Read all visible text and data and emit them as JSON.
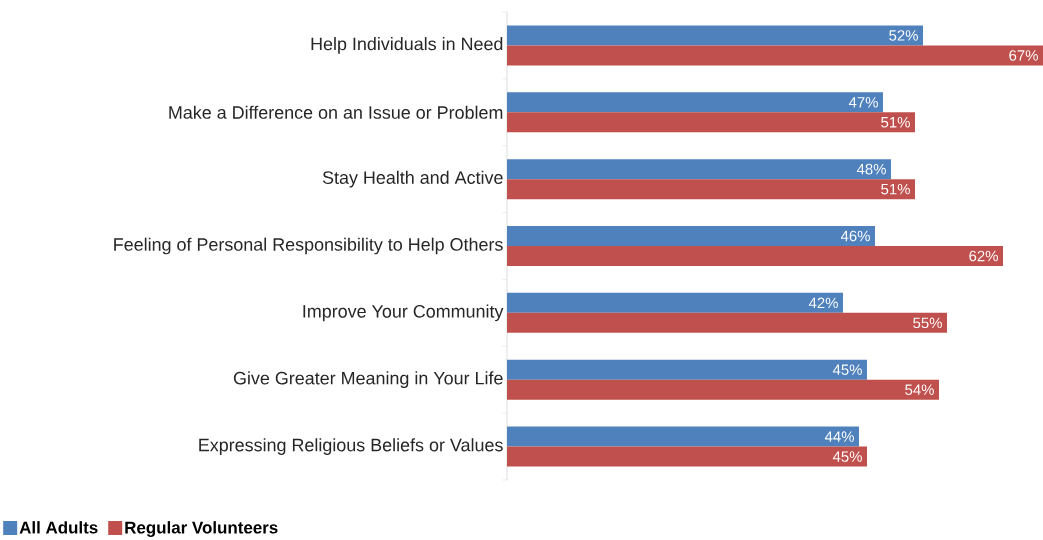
{
  "chart_data": {
    "type": "bar",
    "orientation": "horizontal",
    "categories": [
      "Help Individuals in Need",
      "Make a Difference on an Issue or Problem",
      "Stay Health and Active",
      "Feeling of Personal Responsibility to Help Others",
      "Improve Your Community",
      "Give Greater Meaning in Your Life",
      "Expressing Religious Beliefs or Values"
    ],
    "series": [
      {
        "name": "All Adults",
        "color": "#4f81bd",
        "values": [
          52,
          47,
          48,
          46,
          42,
          45,
          44
        ],
        "value_labels": [
          "52%",
          "47%",
          "48%",
          "46%",
          "42%",
          "45%",
          "44%"
        ]
      },
      {
        "name": "Regular Volunteers",
        "color": "#c0504d",
        "values": [
          67,
          51,
          51,
          62,
          55,
          54,
          45
        ],
        "value_labels": [
          "67%",
          "51%",
          "51%",
          "62%",
          "55%",
          "54%",
          "45%"
        ]
      }
    ],
    "xlim": [
      0,
      67
    ],
    "tick_labels": "y",
    "legend": "bottom left"
  }
}
